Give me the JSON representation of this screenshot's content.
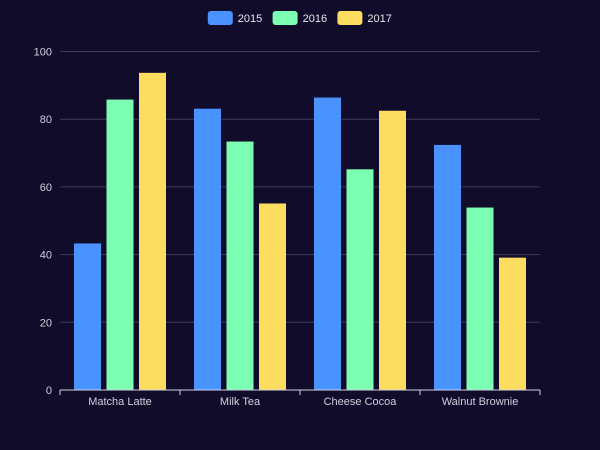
{
  "chart_data": {
    "type": "bar",
    "categories": [
      "Matcha Latte",
      "Milk Tea",
      "Cheese Cocoa",
      "Walnut Brownie"
    ],
    "series": [
      {
        "name": "2015",
        "color": "#4992ff",
        "values": [
          43.3,
          83.1,
          86.4,
          72.4
        ]
      },
      {
        "name": "2016",
        "color": "#7cffb2",
        "values": [
          85.8,
          73.4,
          65.2,
          53.9
        ]
      },
      {
        "name": "2017",
        "color": "#fddd60",
        "values": [
          93.7,
          55.1,
          82.5,
          39.1
        ]
      }
    ],
    "ylim": [
      0,
      100
    ],
    "yticks": [
      0,
      20,
      40,
      60,
      80,
      100
    ],
    "legend_position": "top-center",
    "grid": true
  }
}
